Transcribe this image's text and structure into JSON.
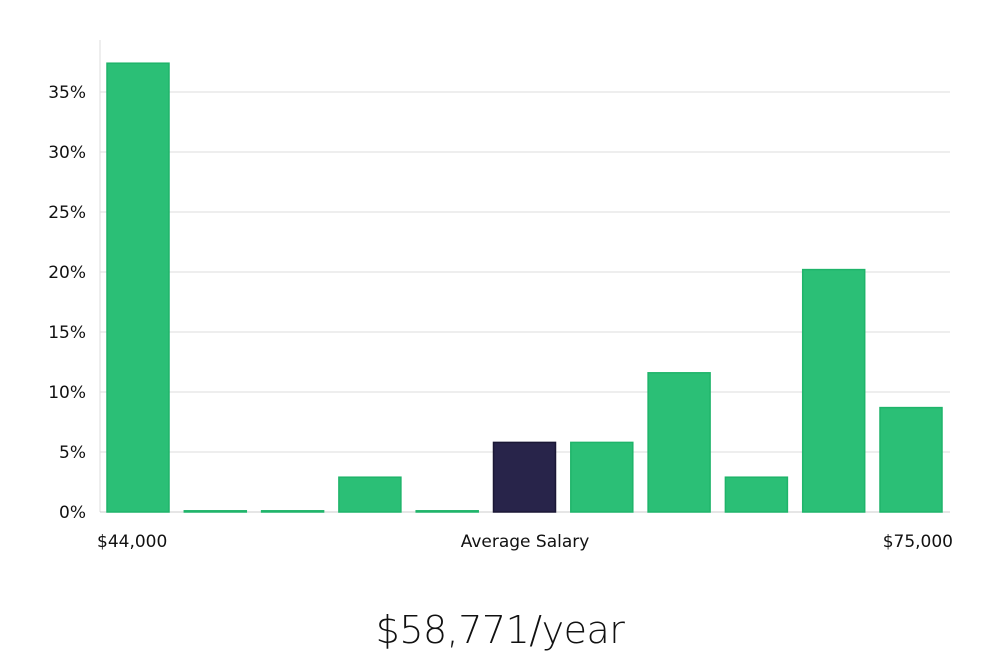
{
  "chart_data": {
    "type": "bar",
    "title": "",
    "xlabel": "Average Salary",
    "ylabel": "",
    "x_min_label": "$44,000",
    "x_max_label": "$75,000",
    "ylim": [
      0,
      39
    ],
    "yticks": [
      0,
      5,
      10,
      15,
      20,
      25,
      30,
      35
    ],
    "ytick_labels": [
      "0%",
      "5%",
      "10%",
      "15%",
      "20%",
      "25%",
      "30%",
      "35%"
    ],
    "grid": true,
    "values": [
      37.4,
      0.1,
      0.1,
      2.9,
      0.1,
      5.8,
      5.8,
      11.6,
      2.9,
      20.2,
      8.7
    ],
    "highlight_index": 5,
    "colors": {
      "bar": "#2bbf76",
      "bar_edge": "#1fb46a",
      "highlight": "#28244a",
      "grid": "#dddddd"
    }
  },
  "average_salary": "$58,771/year"
}
